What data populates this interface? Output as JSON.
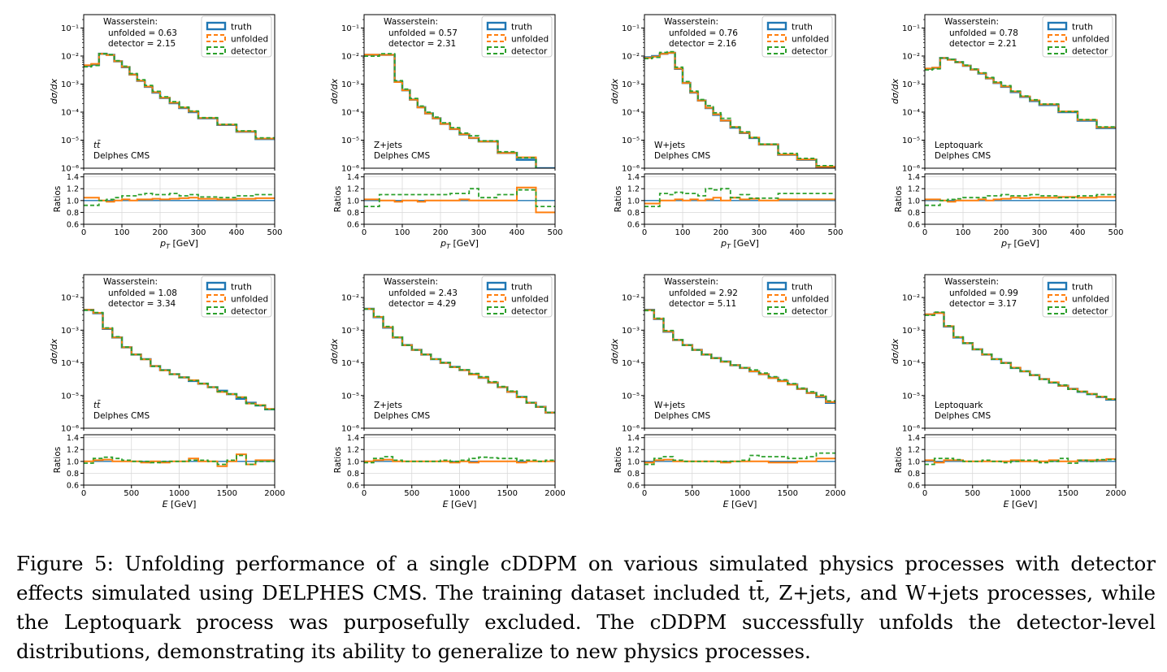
{
  "colors": {
    "truth": "#1f77b4",
    "unfolded": "#ff7f0e",
    "detector": "#2ca02c"
  },
  "legend": [
    "truth",
    "unfolded",
    "detector"
  ],
  "caption": "Figure 5: Unfolding performance of a single cDDPM on various simulated physics processes with detector effects simulated using DELPHES CMS. The training dataset included tt̄, Z+jets, and W+jets processes, while the Leptoquark process was purposefully excluded. The cDDPM successfully unfolds the detector-level distributions, demonstrating its ability to generalize to new physics processes.",
  "chart_data": [
    {
      "type": "line",
      "row": "pT",
      "process": "tt̄",
      "info": "Delphes CMS",
      "ws_title": "Wasserstein:",
      "ws_unfolded": "unfolded = 0.63",
      "ws_detector": "detector = 2.15",
      "xlabel": "p_T [GeV]",
      "ylabel": "dσ/dx",
      "ratio_ylabel": "Ratios",
      "xlim": [
        0,
        500
      ],
      "ylim": [
        1e-06,
        0.3
      ],
      "yscale": "log",
      "xticks": [
        0,
        100,
        200,
        300,
        400,
        500
      ],
      "yticks": [
        1e-06,
        1e-05,
        0.0001,
        0.001,
        0.01,
        0.1
      ],
      "ytick_labels": [
        "10⁻⁶",
        "10⁻⁵",
        "10⁻⁴",
        "10⁻³",
        "10⁻²",
        "10⁻¹"
      ],
      "ratio_ylim": [
        0.6,
        1.45
      ],
      "ratio_yticks": [
        0.6,
        0.8,
        1.0,
        1.2,
        1.4
      ],
      "ratio_ytick_labels": [
        "0.6",
        "0.8",
        "1.0",
        "1.2",
        "1.4"
      ],
      "bins": [
        0,
        20,
        40,
        60,
        80,
        100,
        120,
        140,
        160,
        180,
        200,
        225,
        250,
        275,
        300,
        350,
        400,
        450,
        500
      ],
      "truth": [
        0.0045,
        0.005,
        0.012,
        0.011,
        0.0065,
        0.004,
        0.0022,
        0.0013,
        0.0008,
        0.0005,
        0.00032,
        0.00021,
        0.00014,
        0.0001,
        6e-05,
        3.5e-05,
        2e-05,
        1.1e-05
      ],
      "ratio_unfolded": [
        1.05,
        1.05,
        1.0,
        0.98,
        1.0,
        1.02,
        1.0,
        1.02,
        1.02,
        1.03,
        1.02,
        1.03,
        1.04,
        1.05,
        1.03,
        1.02,
        1.03,
        1.04
      ],
      "ratio_detector": [
        0.92,
        0.92,
        1.0,
        1.02,
        1.05,
        1.08,
        1.08,
        1.1,
        1.12,
        1.1,
        1.1,
        1.12,
        1.08,
        1.1,
        1.06,
        1.05,
        1.08,
        1.1
      ]
    },
    {
      "type": "line",
      "row": "pT",
      "process": "Z+jets",
      "info": "Delphes CMS",
      "ws_title": "Wasserstein:",
      "ws_unfolded": "unfolded = 0.57",
      "ws_detector": "detector = 2.31",
      "xlabel": "p_T [GeV]",
      "ylabel": "dσ/dx",
      "ratio_ylabel": "Ratios",
      "xlim": [
        0,
        500
      ],
      "ylim": [
        1e-06,
        0.3
      ],
      "yscale": "log",
      "xticks": [
        0,
        100,
        200,
        300,
        400,
        500
      ],
      "yticks": [
        1e-06,
        1e-05,
        0.0001,
        0.001,
        0.01,
        0.1
      ],
      "ytick_labels": [
        "10⁻⁶",
        "10⁻⁵",
        "10⁻⁴",
        "10⁻³",
        "10⁻²",
        "10⁻¹"
      ],
      "ratio_ylim": [
        0.6,
        1.45
      ],
      "ratio_yticks": [
        0.6,
        0.8,
        1.0,
        1.2,
        1.4
      ],
      "ratio_ytick_labels": [
        "0.6",
        "0.8",
        "1.0",
        "1.2",
        "1.4"
      ],
      "bins": [
        0,
        20,
        40,
        60,
        80,
        100,
        120,
        140,
        160,
        180,
        200,
        225,
        250,
        275,
        300,
        350,
        400,
        450,
        500
      ],
      "truth": [
        0.011,
        0.011,
        0.011,
        0.011,
        0.0012,
        0.0006,
        0.00028,
        0.00015,
        9e-05,
        6e-05,
        3.8e-05,
        2.5e-05,
        1.6e-05,
        1.2e-05,
        9e-06,
        3.5e-06,
        2e-06,
        1e-06
      ],
      "ratio_unfolded": [
        1.02,
        1.02,
        1.0,
        1.0,
        0.98,
        1.0,
        1.0,
        0.98,
        1.0,
        1.0,
        1.0,
        1.0,
        1.02,
        1.0,
        1.0,
        1.0,
        1.22,
        0.8
      ],
      "ratio_detector": [
        0.9,
        0.9,
        1.1,
        1.1,
        1.1,
        1.1,
        1.1,
        1.1,
        1.1,
        1.1,
        1.1,
        1.12,
        1.12,
        1.2,
        1.05,
        1.1,
        1.18,
        0.9
      ]
    },
    {
      "type": "line",
      "row": "pT",
      "process": "W+jets",
      "info": "Delphes CMS",
      "ws_title": "Wasserstein:",
      "ws_unfolded": "unfolded = 0.76",
      "ws_detector": "detector = 2.16",
      "xlabel": "p_T [GeV]",
      "ylabel": "dσ/dx",
      "ratio_ylabel": "Ratios",
      "xlim": [
        0,
        500
      ],
      "ylim": [
        1e-06,
        0.3
      ],
      "yscale": "log",
      "xticks": [
        0,
        100,
        200,
        300,
        400,
        500
      ],
      "yticks": [
        1e-06,
        1e-05,
        0.0001,
        0.001,
        0.01,
        0.1
      ],
      "ytick_labels": [
        "10⁻⁶",
        "10⁻⁵",
        "10⁻⁴",
        "10⁻³",
        "10⁻²",
        "10⁻¹"
      ],
      "ratio_ylim": [
        0.6,
        1.45
      ],
      "ratio_yticks": [
        0.6,
        0.8,
        1.0,
        1.2,
        1.4
      ],
      "ratio_ytick_labels": [
        "0.6",
        "0.8",
        "1.0",
        "1.2",
        "1.4"
      ],
      "bins": [
        0,
        20,
        40,
        60,
        80,
        100,
        120,
        140,
        160,
        180,
        200,
        225,
        250,
        275,
        300,
        350,
        400,
        450,
        500
      ],
      "truth": [
        0.009,
        0.01,
        0.012,
        0.013,
        0.0035,
        0.0011,
        0.0005,
        0.00026,
        0.00014,
        8e-05,
        5e-05,
        2.8e-05,
        1.8e-05,
        1.2e-05,
        7e-06,
        3e-06,
        2e-06,
        1.1e-06
      ],
      "ratio_unfolded": [
        0.95,
        0.95,
        1.0,
        1.0,
        1.02,
        1.0,
        1.02,
        1.0,
        1.02,
        1.05,
        1.0,
        1.05,
        1.02,
        1.03,
        1.0,
        1.02,
        1.02,
        1.02
      ],
      "ratio_detector": [
        0.9,
        0.9,
        1.12,
        1.1,
        1.14,
        1.12,
        1.12,
        1.08,
        1.2,
        1.18,
        1.2,
        1.05,
        1.1,
        1.04,
        1.04,
        1.12,
        1.12,
        1.12
      ]
    },
    {
      "type": "line",
      "row": "pT",
      "process": "Leptoquark",
      "info": "Delphes CMS",
      "ws_title": "Wasserstein:",
      "ws_unfolded": "unfolded = 0.78",
      "ws_detector": "detector = 2.21",
      "xlabel": "p_T [GeV]",
      "ylabel": "dσ/dx",
      "ratio_ylabel": "Ratios",
      "xlim": [
        0,
        500
      ],
      "ylim": [
        1e-06,
        0.3
      ],
      "yscale": "log",
      "xticks": [
        0,
        100,
        200,
        300,
        400,
        500
      ],
      "yticks": [
        1e-06,
        1e-05,
        0.0001,
        0.001,
        0.01,
        0.1
      ],
      "ytick_labels": [
        "10⁻⁶",
        "10⁻⁵",
        "10⁻⁴",
        "10⁻³",
        "10⁻²",
        "10⁻¹"
      ],
      "ratio_ylim": [
        0.6,
        1.45
      ],
      "ratio_yticks": [
        0.6,
        0.8,
        1.0,
        1.2,
        1.4
      ],
      "ratio_ytick_labels": [
        "0.6",
        "0.8",
        "1.0",
        "1.2",
        "1.4"
      ],
      "bins": [
        0,
        20,
        40,
        60,
        80,
        100,
        120,
        140,
        160,
        180,
        200,
        225,
        250,
        275,
        300,
        350,
        400,
        450,
        500
      ],
      "truth": [
        0.0035,
        0.0038,
        0.0085,
        0.0075,
        0.006,
        0.0045,
        0.0033,
        0.0024,
        0.0016,
        0.0011,
        0.0008,
        0.00052,
        0.00035,
        0.00025,
        0.00018,
        0.0001,
        5e-05,
        2.7e-05
      ],
      "ratio_unfolded": [
        1.02,
        1.02,
        1.0,
        0.98,
        1.0,
        1.0,
        1.0,
        1.02,
        1.0,
        1.02,
        1.03,
        1.05,
        1.04,
        1.05,
        1.05,
        1.06,
        1.05,
        1.06
      ],
      "ratio_detector": [
        0.92,
        0.92,
        1.0,
        1.02,
        1.03,
        1.05,
        1.05,
        1.05,
        1.08,
        1.08,
        1.1,
        1.08,
        1.08,
        1.1,
        1.08,
        1.05,
        1.08,
        1.1
      ]
    },
    {
      "type": "line",
      "row": "E",
      "process": "tt̄",
      "info": "Delphes CMS",
      "ws_title": "Wasserstein:",
      "ws_unfolded": "unfolded = 1.08",
      "ws_detector": "detector = 3.34",
      "xlabel": "E [GeV]",
      "ylabel": "dσ/dx",
      "ratio_ylabel": "Ratios",
      "xlim": [
        0,
        2000
      ],
      "ylim": [
        1e-06,
        0.05
      ],
      "yscale": "log",
      "xticks": [
        0,
        500,
        1000,
        1500,
        2000
      ],
      "yticks": [
        1e-06,
        1e-05,
        0.0001,
        0.001,
        0.01
      ],
      "ytick_labels": [
        "10⁻⁶",
        "10⁻⁵",
        "10⁻⁴",
        "10⁻³",
        "10⁻²"
      ],
      "ratio_ylim": [
        0.6,
        1.45
      ],
      "ratio_yticks": [
        0.6,
        0.8,
        1.0,
        1.2,
        1.4
      ],
      "ratio_ytick_labels": [
        "0.6",
        "0.8",
        "1.0",
        "1.2",
        "1.4"
      ],
      "bins": [
        0,
        100,
        200,
        300,
        400,
        500,
        600,
        700,
        800,
        900,
        1000,
        1100,
        1200,
        1300,
        1400,
        1500,
        1600,
        1700,
        1800,
        1900,
        2000
      ],
      "truth": [
        0.0042,
        0.0033,
        0.0011,
        0.0006,
        0.0003,
        0.00018,
        0.00013,
        8e-05,
        6e-05,
        4.5e-05,
        3.6e-05,
        2.8e-05,
        2.3e-05,
        1.8e-05,
        1.4e-05,
        1.1e-05,
        8e-06,
        6e-06,
        5e-06,
        3.8e-06
      ],
      "ratio_unfolded": [
        1.0,
        1.02,
        1.03,
        1.0,
        1.0,
        1.0,
        0.98,
        1.0,
        0.98,
        1.0,
        1.0,
        1.05,
        1.0,
        1.0,
        0.92,
        1.0,
        1.12,
        0.95,
        1.02,
        1.02
      ],
      "ratio_detector": [
        0.97,
        1.05,
        1.07,
        1.05,
        1.02,
        1.0,
        1.0,
        0.98,
        1.0,
        1.0,
        1.0,
        1.02,
        1.02,
        1.0,
        0.95,
        1.02,
        1.1,
        0.95,
        1.0,
        1.0
      ]
    },
    {
      "type": "line",
      "row": "E",
      "process": "Z+jets",
      "info": "Delphes CMS",
      "ws_title": "Wasserstein:",
      "ws_unfolded": "unfolded = 2.43",
      "ws_detector": "detector = 4.29",
      "xlabel": "E [GeV]",
      "ylabel": "dσ/dx",
      "ratio_ylabel": "Ratios",
      "xlim": [
        0,
        2000
      ],
      "ylim": [
        1e-06,
        0.05
      ],
      "yscale": "log",
      "xticks": [
        0,
        500,
        1000,
        1500,
        2000
      ],
      "yticks": [
        1e-06,
        1e-05,
        0.0001,
        0.001,
        0.01
      ],
      "ytick_labels": [
        "10⁻⁶",
        "10⁻⁵",
        "10⁻⁴",
        "10⁻³",
        "10⁻²"
      ],
      "ratio_ylim": [
        0.6,
        1.45
      ],
      "ratio_yticks": [
        0.6,
        0.8,
        1.0,
        1.2,
        1.4
      ],
      "ratio_ytick_labels": [
        "0.6",
        "0.8",
        "1.0",
        "1.2",
        "1.4"
      ],
      "bins": [
        0,
        100,
        200,
        300,
        400,
        500,
        600,
        700,
        800,
        900,
        1000,
        1100,
        1200,
        1300,
        1400,
        1500,
        1600,
        1700,
        1800,
        1900,
        2000
      ],
      "truth": [
        0.0045,
        0.0025,
        0.0012,
        0.0006,
        0.00035,
        0.00025,
        0.00018,
        0.00013,
        0.0001,
        7.5e-05,
        6e-05,
        4.5e-05,
        3.5e-05,
        2.5e-05,
        1.8e-05,
        1.3e-05,
        9e-06,
        6e-06,
        4.5e-06,
        3e-06
      ],
      "ratio_unfolded": [
        1.0,
        1.02,
        1.03,
        1.0,
        1.0,
        1.0,
        1.0,
        1.0,
        1.0,
        0.98,
        1.0,
        0.98,
        1.0,
        1.0,
        1.0,
        1.0,
        0.98,
        1.0,
        1.0,
        1.0
      ],
      "ratio_detector": [
        0.98,
        1.05,
        1.08,
        1.02,
        1.0,
        1.0,
        1.0,
        1.0,
        1.02,
        1.0,
        1.02,
        1.05,
        1.07,
        1.06,
        1.05,
        1.05,
        1.02,
        1.02,
        1.0,
        1.02
      ]
    },
    {
      "type": "line",
      "row": "E",
      "process": "W+jets",
      "info": "Delphes CMS",
      "ws_title": "Wasserstein:",
      "ws_unfolded": "unfolded = 2.92",
      "ws_detector": "detector = 5.11",
      "xlabel": "E [GeV]",
      "ylabel": "dσ/dx",
      "ratio_ylabel": "Ratios",
      "xlim": [
        0,
        2000
      ],
      "ylim": [
        1e-06,
        0.05
      ],
      "yscale": "log",
      "xticks": [
        0,
        500,
        1000,
        1500,
        2000
      ],
      "yticks": [
        1e-06,
        1e-05,
        0.0001,
        0.001,
        0.01
      ],
      "ytick_labels": [
        "10⁻⁶",
        "10⁻⁵",
        "10⁻⁴",
        "10⁻³",
        "10⁻²"
      ],
      "ratio_ylim": [
        0.6,
        1.45
      ],
      "ratio_yticks": [
        0.6,
        0.8,
        1.0,
        1.2,
        1.4
      ],
      "ratio_ytick_labels": [
        "0.6",
        "0.8",
        "1.0",
        "1.2",
        "1.4"
      ],
      "bins": [
        0,
        100,
        200,
        300,
        400,
        500,
        600,
        700,
        800,
        900,
        1000,
        1100,
        1200,
        1300,
        1400,
        1500,
        1600,
        1700,
        1800,
        1900,
        2000
      ],
      "truth": [
        0.0042,
        0.0022,
        0.0009,
        0.0005,
        0.00035,
        0.00025,
        0.00018,
        0.00014,
        0.00011,
        8.5e-05,
        7e-05,
        5.5e-05,
        4.5e-05,
        3.5e-05,
        2.8e-05,
        2.2e-05,
        1.6e-05,
        1.2e-05,
        9e-06,
        6e-06
      ],
      "ratio_unfolded": [
        0.98,
        1.02,
        1.03,
        1.0,
        1.0,
        1.0,
        1.0,
        1.0,
        0.98,
        1.0,
        1.0,
        1.0,
        1.0,
        0.98,
        0.98,
        0.98,
        1.0,
        1.0,
        1.05,
        1.05
      ],
      "ratio_detector": [
        0.95,
        1.05,
        1.08,
        1.02,
        1.0,
        1.0,
        1.0,
        1.0,
        1.0,
        1.0,
        1.02,
        1.1,
        1.08,
        1.08,
        1.08,
        1.05,
        1.05,
        1.08,
        1.14,
        1.14
      ]
    },
    {
      "type": "line",
      "row": "E",
      "process": "Leptoquark",
      "info": "Delphes CMS",
      "ws_title": "Wasserstein:",
      "ws_unfolded": "unfolded = 0.99",
      "ws_detector": "detector = 3.17",
      "xlabel": "E [GeV]",
      "ylabel": "dσ/dx",
      "ratio_ylabel": "Ratios",
      "xlim": [
        0,
        2000
      ],
      "ylim": [
        1e-06,
        0.05
      ],
      "yscale": "log",
      "xticks": [
        0,
        500,
        1000,
        1500,
        2000
      ],
      "yticks": [
        1e-06,
        1e-05,
        0.0001,
        0.001,
        0.01
      ],
      "ytick_labels": [
        "10⁻⁶",
        "10⁻⁵",
        "10⁻⁴",
        "10⁻³",
        "10⁻²"
      ],
      "ratio_ylim": [
        0.6,
        1.45
      ],
      "ratio_yticks": [
        0.6,
        0.8,
        1.0,
        1.2,
        1.4
      ],
      "ratio_ytick_labels": [
        "0.6",
        "0.8",
        "1.0",
        "1.2",
        "1.4"
      ],
      "bins": [
        0,
        100,
        200,
        300,
        400,
        500,
        600,
        700,
        800,
        900,
        1000,
        1100,
        1200,
        1300,
        1400,
        1500,
        1600,
        1700,
        1800,
        1900,
        2000
      ],
      "truth": [
        0.003,
        0.0034,
        0.0013,
        0.0006,
        0.0004,
        0.00026,
        0.00018,
        0.00013,
        0.0001,
        7e-05,
        5.5e-05,
        4.2e-05,
        3.2e-05,
        2.5e-05,
        2e-05,
        1.6e-05,
        1.3e-05,
        1.1e-05,
        9e-06,
        7.5e-06
      ],
      "ratio_unfolded": [
        1.02,
        0.98,
        1.02,
        1.02,
        1.0,
        1.0,
        1.0,
        1.0,
        1.0,
        1.02,
        1.0,
        1.0,
        1.0,
        1.02,
        1.0,
        1.0,
        1.02,
        1.02,
        1.02,
        1.04
      ],
      "ratio_detector": [
        0.95,
        1.05,
        1.05,
        1.03,
        1.0,
        1.0,
        1.02,
        1.0,
        0.98,
        1.0,
        1.02,
        1.02,
        0.98,
        1.0,
        1.05,
        0.97,
        1.02,
        1.0,
        1.03,
        1.03
      ]
    }
  ]
}
